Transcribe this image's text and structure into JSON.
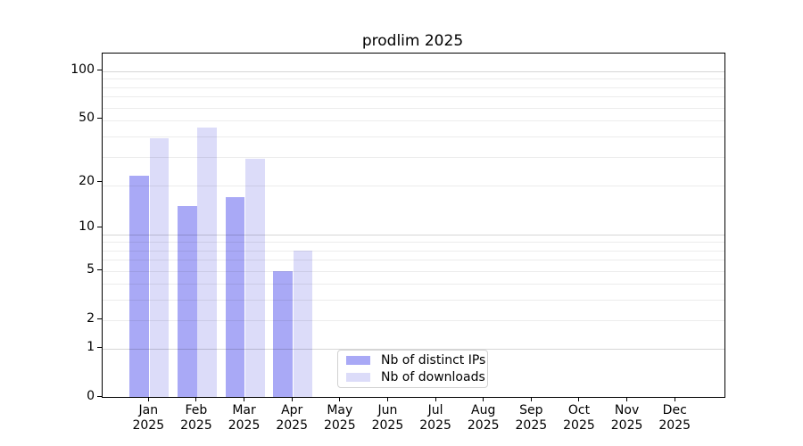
{
  "figure": {
    "title": "prodlim 2025",
    "background_color": "#ffffff"
  },
  "chart_data": {
    "type": "bar",
    "title": "prodlim 2025",
    "categories": [
      "Jan 2025",
      "Feb 2025",
      "Mar 2025",
      "Apr 2025",
      "May 2025",
      "Jun 2025",
      "Jul 2025",
      "Aug 2025",
      "Sep 2025",
      "Oct 2025",
      "Nov 2025",
      "Dec 2025"
    ],
    "x_tick_labels_line1": [
      "Jan",
      "Feb",
      "Mar",
      "Apr",
      "May",
      "Jun",
      "Jul",
      "Aug",
      "Sep",
      "Oct",
      "Nov",
      "Dec"
    ],
    "x_tick_labels_line2": [
      "2025",
      "2025",
      "2025",
      "2025",
      "2025",
      "2025",
      "2025",
      "2025",
      "2025",
      "2025",
      "2025",
      "2025"
    ],
    "series": [
      {
        "name": "Nb of distinct IPs",
        "color": "#a9a9f6",
        "values": [
          22,
          14,
          16,
          5,
          null,
          null,
          null,
          null,
          null,
          null,
          null,
          null
        ]
      },
      {
        "name": "Nb of downloads",
        "color": "#dcdcf9",
        "values": [
          38,
          44,
          28,
          7,
          null,
          null,
          null,
          null,
          null,
          null,
          null,
          null
        ]
      }
    ],
    "y_axis": {
      "scale": "log10(value+1)",
      "tick_values": [
        100,
        50,
        20,
        10,
        5,
        2,
        1,
        0
      ],
      "tick_labels": [
        "100",
        "50",
        "20",
        "10",
        "5",
        "2",
        "1",
        "0"
      ],
      "range_top_value": 130
    },
    "grid": {
      "enabled": true,
      "drawn_above_bars": true,
      "minor_line_positions_u": [
        3,
        4,
        5,
        6,
        7,
        8,
        9,
        20,
        30,
        40,
        50,
        60,
        70,
        80,
        90
      ],
      "major_line_positions_u": [
        2,
        10,
        100
      ]
    },
    "legend": {
      "position": "lower-center-inside",
      "entries": [
        "Nb of distinct IPs",
        "Nb of downloads"
      ]
    },
    "xlabel": "",
    "ylabel": ""
  }
}
